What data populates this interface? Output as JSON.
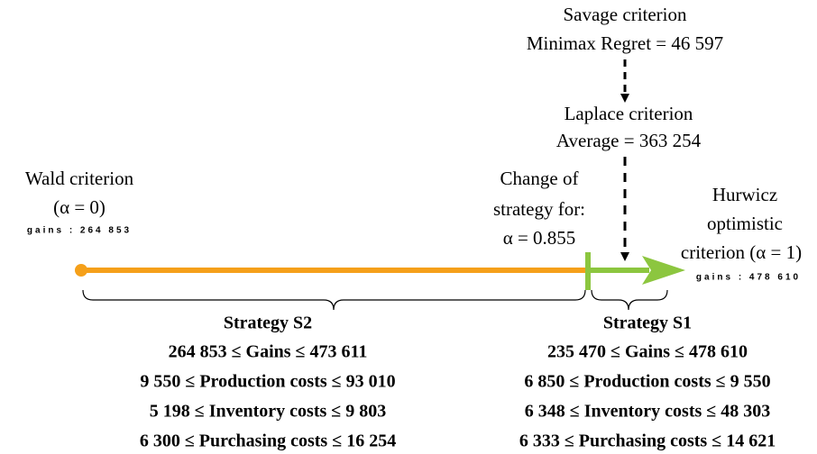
{
  "savage": {
    "title": "Savage criterion",
    "value": "Minimax Regret = 46 597"
  },
  "laplace": {
    "title": "Laplace criterion",
    "value": "Average = 363 254"
  },
  "wald": {
    "title": "Wald criterion",
    "alpha": "(α = 0)",
    "gains": "gains : 264 853"
  },
  "change": {
    "lines": [
      "Change of",
      "strategy for:",
      "α = 0.855"
    ]
  },
  "hurwicz": {
    "lines": [
      "Hurwicz",
      "optimistic",
      "criterion (α = 1)"
    ],
    "gains": "gains : 478 610"
  },
  "strategies": [
    {
      "name": "Strategy S2",
      "lines": [
        "264 853 ≤ Gains ≤ 473 611",
        "9 550 ≤ Production costs ≤ 93 010",
        "5 198 ≤ Inventory costs ≤ 9 803",
        "6 300 ≤ Purchasing costs ≤ 16 254"
      ]
    },
    {
      "name": "Strategy S1",
      "lines": [
        "235 470 ≤ Gains ≤ 478 610",
        "6 850 ≤ Production costs ≤ 9 550",
        "6 348 ≤ Inventory costs ≤ 48 303",
        "6 333 ≤ Purchasing costs ≤ 14 621"
      ]
    }
  ]
}
